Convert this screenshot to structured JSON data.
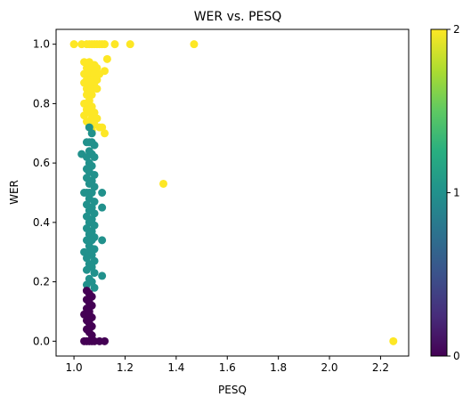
{
  "chart_data": {
    "type": "scatter",
    "title": "WER vs. PESQ",
    "xlabel": "PESQ",
    "ylabel": "WER",
    "xlim": [
      0.93,
      2.31
    ],
    "ylim": [
      -0.05,
      1.05
    ],
    "x_ticks": [
      "1.0",
      "1.2",
      "1.4",
      "1.6",
      "1.8",
      "2.0",
      "2.2"
    ],
    "y_ticks": [
      "0.0",
      "0.2",
      "0.4",
      "0.6",
      "0.8",
      "1.0"
    ],
    "colormap": "viridis",
    "colorbar": {
      "range": [
        0,
        2
      ],
      "ticks": [
        "0",
        "1",
        "2"
      ]
    },
    "series": [
      {
        "color_value": 2,
        "color": "#fde725",
        "points": [
          [
            1.0,
            1.0
          ],
          [
            1.03,
            1.0
          ],
          [
            1.05,
            1.0
          ],
          [
            1.06,
            1.0
          ],
          [
            1.07,
            1.0
          ],
          [
            1.08,
            1.0
          ],
          [
            1.09,
            1.0
          ],
          [
            1.1,
            1.0
          ],
          [
            1.11,
            1.0
          ],
          [
            1.12,
            1.0
          ],
          [
            1.16,
            1.0
          ],
          [
            1.22,
            1.0
          ],
          [
            1.47,
            1.0
          ],
          [
            1.13,
            0.95
          ],
          [
            1.04,
            0.94
          ],
          [
            1.06,
            0.94
          ],
          [
            1.08,
            0.93
          ],
          [
            1.05,
            0.92
          ],
          [
            1.07,
            0.92
          ],
          [
            1.09,
            0.92
          ],
          [
            1.12,
            0.91
          ],
          [
            1.04,
            0.9
          ],
          [
            1.06,
            0.9
          ],
          [
            1.08,
            0.9
          ],
          [
            1.1,
            0.9
          ],
          [
            1.05,
            0.88
          ],
          [
            1.07,
            0.88
          ],
          [
            1.09,
            0.88
          ],
          [
            1.04,
            0.87
          ],
          [
            1.06,
            0.87
          ],
          [
            1.08,
            0.86
          ],
          [
            1.05,
            0.85
          ],
          [
            1.07,
            0.85
          ],
          [
            1.09,
            0.85
          ],
          [
            1.06,
            0.84
          ],
          [
            1.05,
            0.83
          ],
          [
            1.07,
            0.83
          ],
          [
            1.06,
            0.81
          ],
          [
            1.05,
            0.8
          ],
          [
            1.04,
            0.8
          ],
          [
            1.07,
            0.79
          ],
          [
            1.05,
            0.78
          ],
          [
            1.06,
            0.77
          ],
          [
            1.08,
            0.77
          ],
          [
            1.04,
            0.76
          ],
          [
            1.07,
            0.75
          ],
          [
            1.09,
            0.75
          ],
          [
            1.05,
            0.74
          ],
          [
            1.06,
            0.73
          ],
          [
            1.08,
            0.73
          ],
          [
            1.1,
            0.72
          ],
          [
            1.11,
            0.72
          ],
          [
            1.07,
            0.71
          ],
          [
            1.12,
            0.7
          ],
          [
            1.35,
            0.53
          ],
          [
            2.25,
            0.0
          ]
        ]
      },
      {
        "color_value": 1,
        "color": "#21918c",
        "points": [
          [
            1.06,
            0.72
          ],
          [
            1.07,
            0.7
          ],
          [
            1.05,
            0.67
          ],
          [
            1.06,
            0.67
          ],
          [
            1.07,
            0.67
          ],
          [
            1.08,
            0.66
          ],
          [
            1.06,
            0.64
          ],
          [
            1.07,
            0.63
          ],
          [
            1.03,
            0.63
          ],
          [
            1.05,
            0.62
          ],
          [
            1.08,
            0.62
          ],
          [
            1.06,
            0.6
          ],
          [
            1.07,
            0.59
          ],
          [
            1.05,
            0.58
          ],
          [
            1.06,
            0.57
          ],
          [
            1.08,
            0.56
          ],
          [
            1.05,
            0.55
          ],
          [
            1.07,
            0.54
          ],
          [
            1.06,
            0.53
          ],
          [
            1.08,
            0.52
          ],
          [
            1.04,
            0.5
          ],
          [
            1.05,
            0.5
          ],
          [
            1.06,
            0.5
          ],
          [
            1.07,
            0.5
          ],
          [
            1.11,
            0.5
          ],
          [
            1.06,
            0.48
          ],
          [
            1.08,
            0.47
          ],
          [
            1.05,
            0.46
          ],
          [
            1.07,
            0.45
          ],
          [
            1.11,
            0.45
          ],
          [
            1.06,
            0.44
          ],
          [
            1.08,
            0.43
          ],
          [
            1.05,
            0.42
          ],
          [
            1.07,
            0.41
          ],
          [
            1.06,
            0.4
          ],
          [
            1.08,
            0.39
          ],
          [
            1.05,
            0.38
          ],
          [
            1.07,
            0.37
          ],
          [
            1.06,
            0.36
          ],
          [
            1.08,
            0.35
          ],
          [
            1.05,
            0.34
          ],
          [
            1.07,
            0.34
          ],
          [
            1.11,
            0.34
          ],
          [
            1.06,
            0.32
          ],
          [
            1.08,
            0.31
          ],
          [
            1.04,
            0.3
          ],
          [
            1.06,
            0.3
          ],
          [
            1.07,
            0.29
          ],
          [
            1.05,
            0.28
          ],
          [
            1.08,
            0.27
          ],
          [
            1.06,
            0.26
          ],
          [
            1.07,
            0.25
          ],
          [
            1.05,
            0.24
          ],
          [
            1.08,
            0.23
          ],
          [
            1.11,
            0.22
          ],
          [
            1.06,
            0.21
          ],
          [
            1.07,
            0.2
          ],
          [
            1.05,
            0.19
          ],
          [
            1.08,
            0.18
          ]
        ]
      },
      {
        "color_value": 0,
        "color": "#440154",
        "points": [
          [
            1.05,
            0.17
          ],
          [
            1.06,
            0.16
          ],
          [
            1.07,
            0.15
          ],
          [
            1.05,
            0.14
          ],
          [
            1.06,
            0.13
          ],
          [
            1.07,
            0.12
          ],
          [
            1.05,
            0.11
          ],
          [
            1.06,
            0.1
          ],
          [
            1.04,
            0.09
          ],
          [
            1.06,
            0.09
          ],
          [
            1.07,
            0.08
          ],
          [
            1.05,
            0.07
          ],
          [
            1.06,
            0.06
          ],
          [
            1.07,
            0.05
          ],
          [
            1.05,
            0.04
          ],
          [
            1.06,
            0.03
          ],
          [
            1.07,
            0.02
          ],
          [
            1.04,
            0.0
          ],
          [
            1.05,
            0.0
          ],
          [
            1.06,
            0.0
          ],
          [
            1.07,
            0.0
          ],
          [
            1.08,
            0.0
          ],
          [
            1.1,
            0.0
          ],
          [
            1.12,
            0.0
          ]
        ]
      }
    ]
  }
}
